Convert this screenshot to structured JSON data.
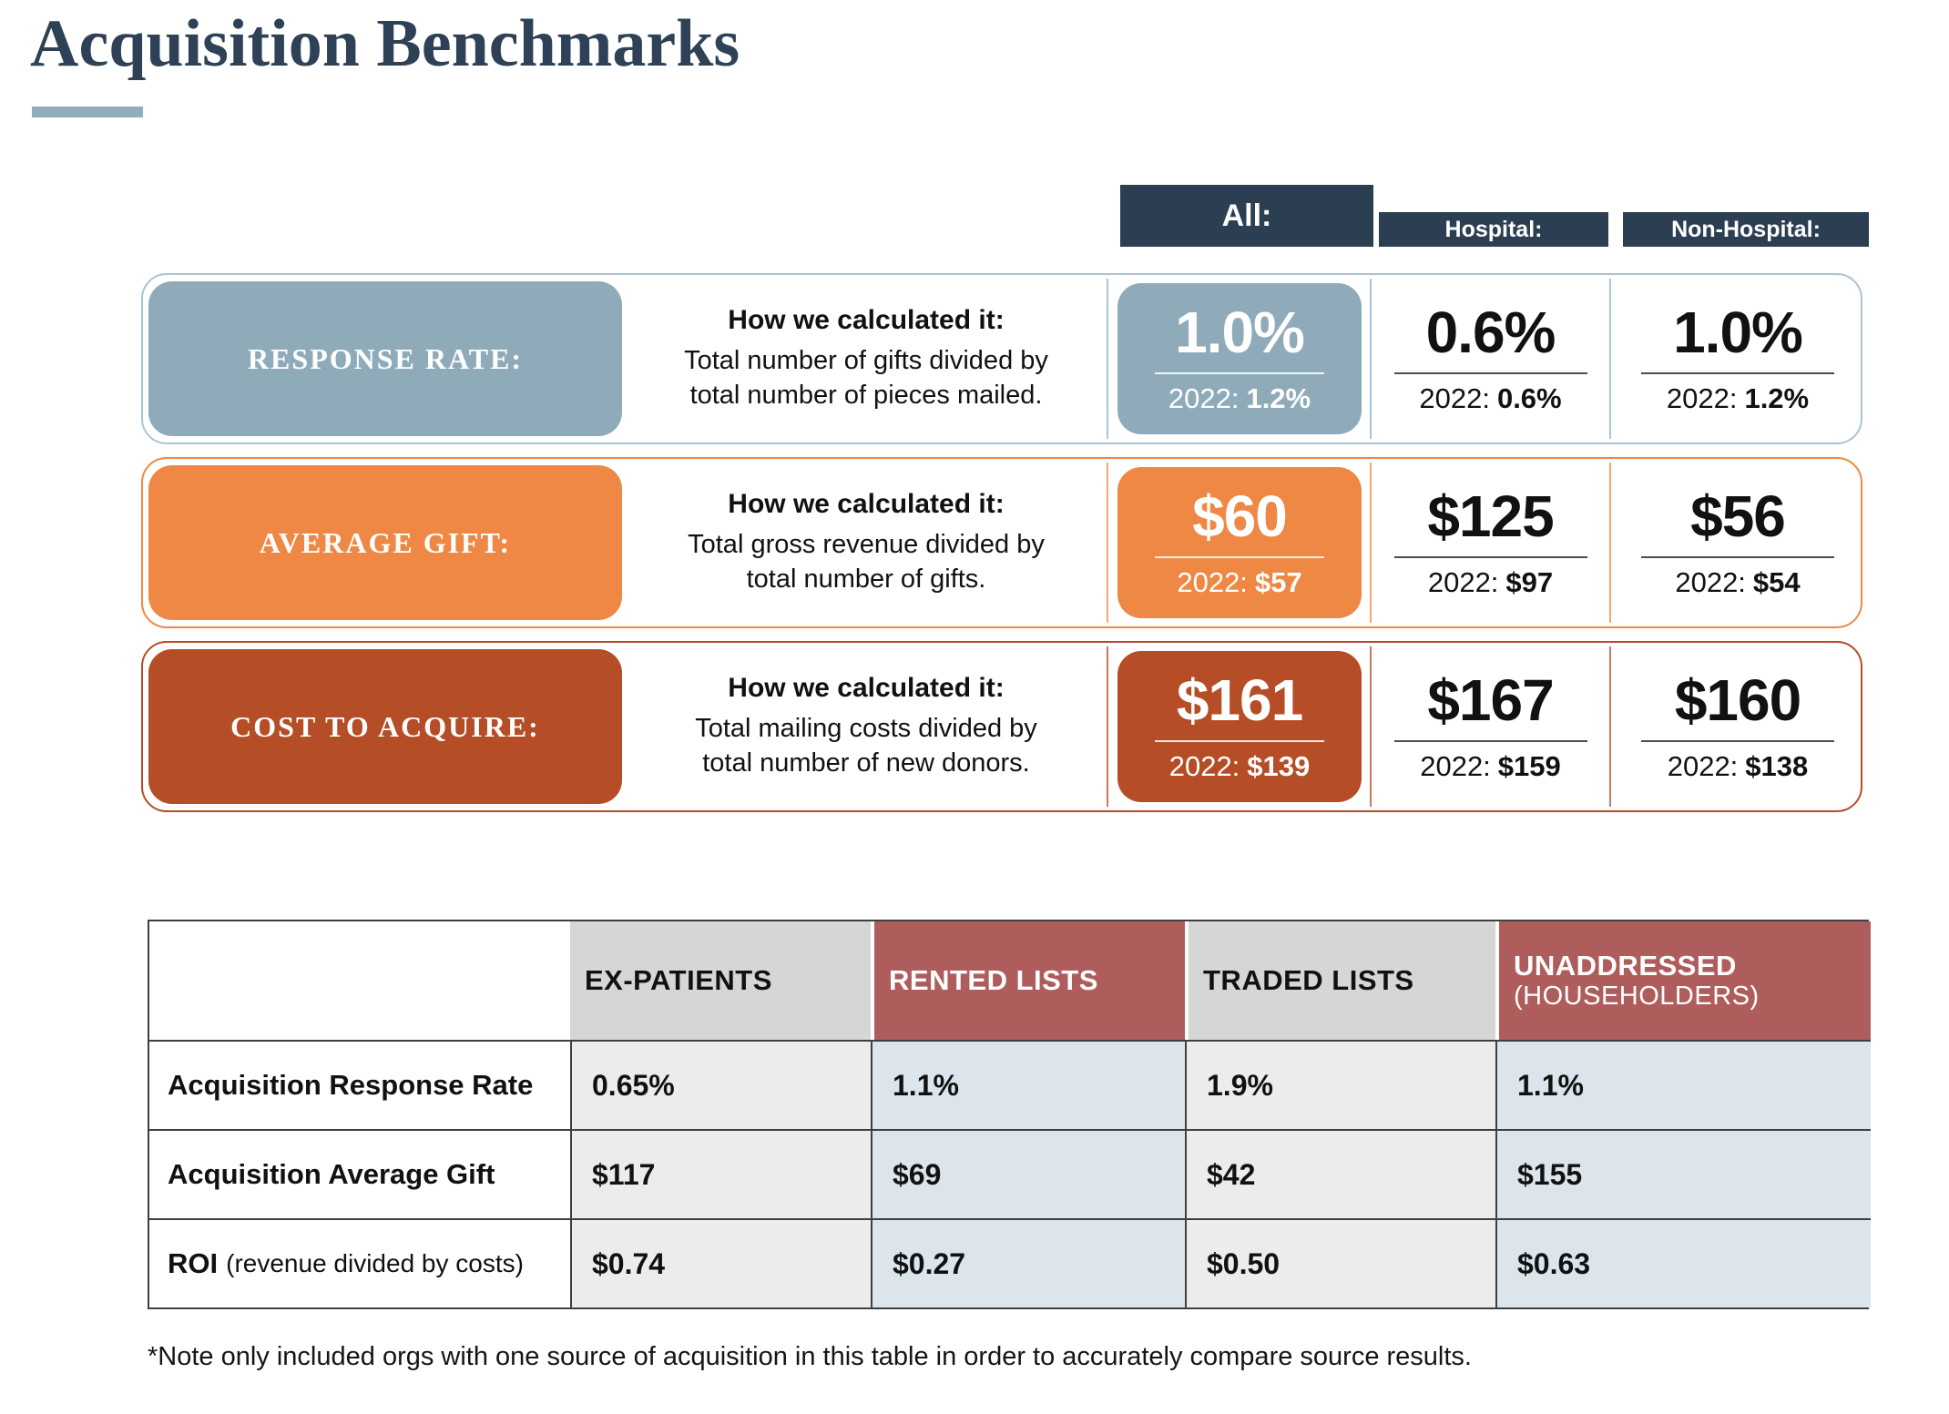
{
  "title": "Acquisition Benchmarks",
  "colors": {
    "title_navy": "#2e4156",
    "header_navy": "#2c3e52",
    "accent_bar": "#92aebe",
    "response_rate_steel": "#8fabba",
    "average_gift_orange": "#ee8844",
    "cost_to_acquire_rust": "#b54d26",
    "table_header_maroon": "#af5d5c",
    "table_header_gray": "#d6d6d6",
    "table_cell_gray": "#ecedeb",
    "table_cell_blue": "#dbe5eb"
  },
  "column_headers": {
    "all": "All:",
    "hospital": "Hospital:",
    "non_hospital": "Non-Hospital:"
  },
  "benchmarks": [
    {
      "label": "RESPONSE RATE:",
      "calc_title": "How we calculated it:",
      "calc_line1": "Total number of gifts divided by",
      "calc_line2": "total number of pieces mailed.",
      "prior_label": "2022:",
      "all": {
        "value": "1.0%",
        "prior": "1.2%"
      },
      "hospital": {
        "value": "0.6%",
        "prior": "0.6%"
      },
      "non_hospital": {
        "value": "1.0%",
        "prior": "1.2%"
      }
    },
    {
      "label": "AVERAGE GIFT:",
      "calc_title": "How we calculated it:",
      "calc_line1": "Total gross revenue divided by",
      "calc_line2": "total number of gifts.",
      "prior_label": "2022:",
      "all": {
        "value": "$60",
        "prior": "$57"
      },
      "hospital": {
        "value": "$125",
        "prior": "$97"
      },
      "non_hospital": {
        "value": "$56",
        "prior": "$54"
      }
    },
    {
      "label": "COST TO ACQUIRE:",
      "calc_title": "How we calculated it:",
      "calc_line1": "Total mailing costs divided by",
      "calc_line2": "total number of new donors.",
      "prior_label": "2022:",
      "all": {
        "value": "$161",
        "prior": "$139"
      },
      "hospital": {
        "value": "$167",
        "prior": "$159"
      },
      "non_hospital": {
        "value": "$160",
        "prior": "$138"
      }
    }
  ],
  "source_table": {
    "headers": [
      {
        "label": "EX-PATIENTS"
      },
      {
        "label": "RENTED LISTS"
      },
      {
        "label": "TRADED LISTS"
      },
      {
        "label": "UNADDRESSED",
        "sublabel": "(HOUSEHOLDERS)"
      }
    ],
    "rows": [
      {
        "label": "Acquisition Response Rate",
        "label_note": "",
        "values": [
          "0.65%",
          "1.1%",
          "1.9%",
          "1.1%"
        ]
      },
      {
        "label": "Acquisition Average Gift",
        "label_note": "",
        "values": [
          "$117",
          "$69",
          "$42",
          "$155"
        ]
      },
      {
        "label": "ROI",
        "label_note": "(revenue divided by costs)",
        "values": [
          "$0.74",
          "$0.27",
          "$0.50",
          "$0.63"
        ]
      }
    ]
  },
  "footnote": "*Note only included orgs with one source of acquisition in this table in order to accurately compare source results."
}
